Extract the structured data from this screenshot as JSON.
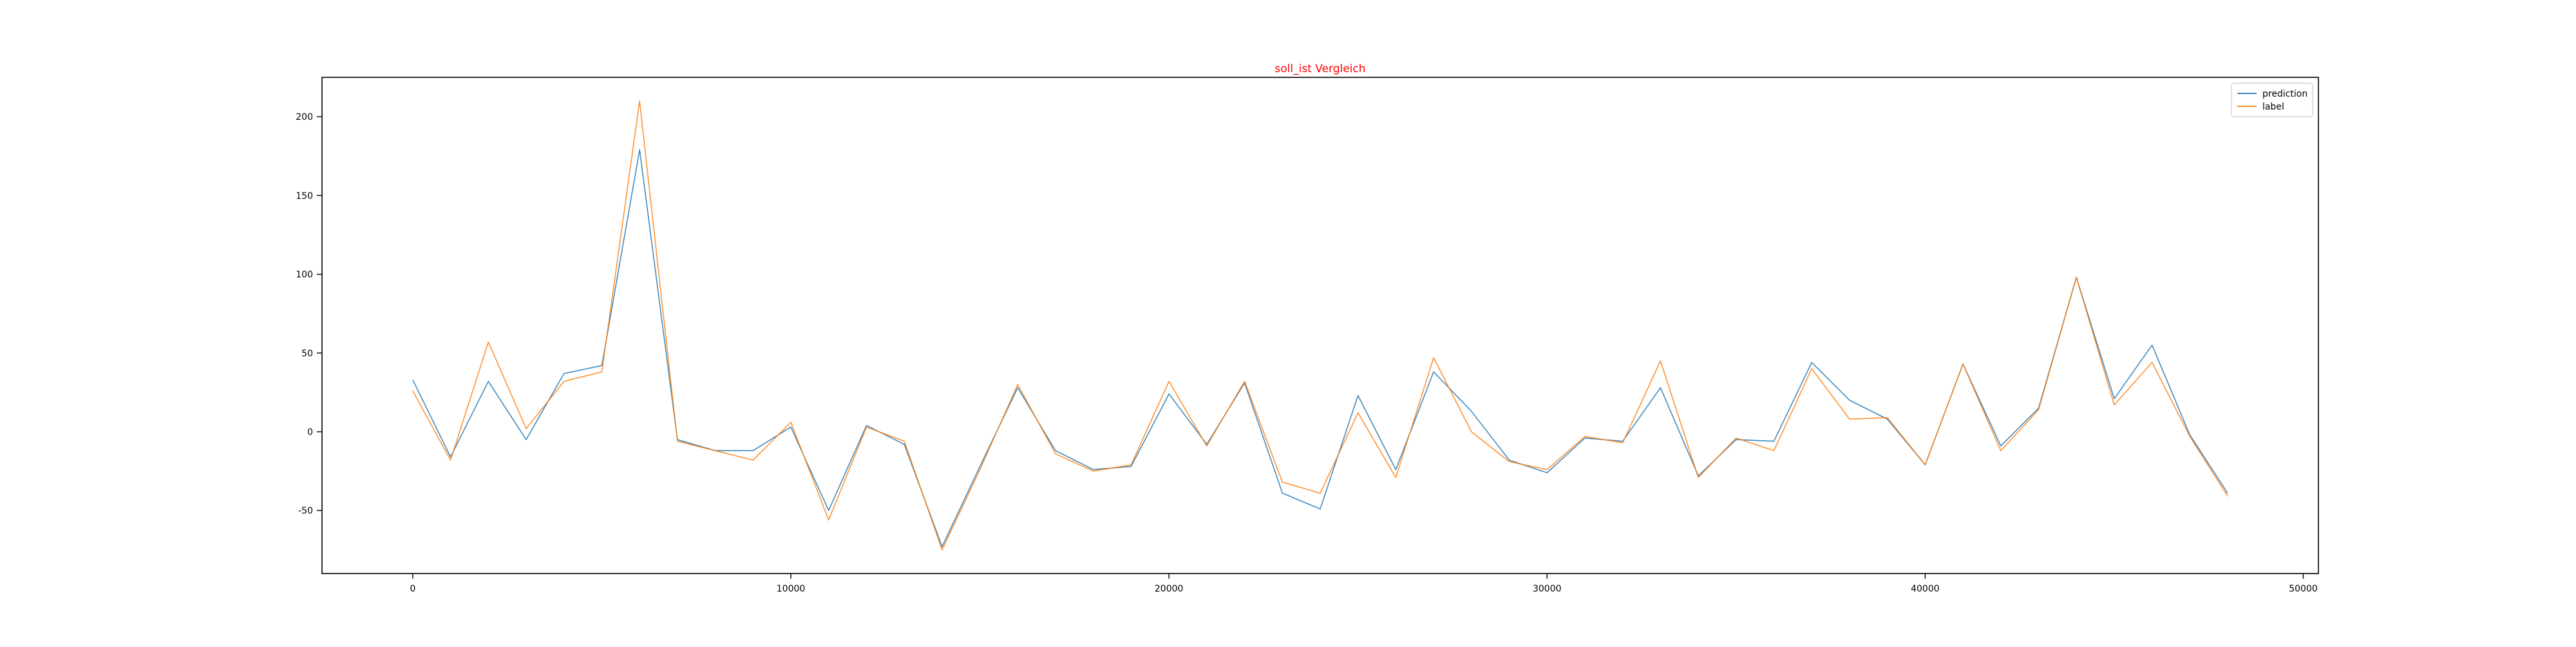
{
  "chart_data": {
    "type": "line",
    "title": "soll_ist Vergleich",
    "title_color": "#ff0000",
    "xlabel": "",
    "ylabel": "",
    "xlim": [
      -2400,
      50400
    ],
    "ylim": [
      -90,
      225
    ],
    "xticks": [
      0,
      10000,
      20000,
      30000,
      40000,
      50000
    ],
    "yticks": [
      -50,
      0,
      50,
      100,
      150,
      200
    ],
    "grid": false,
    "legend_position": "top-right",
    "x": [
      0,
      1000,
      2000,
      3000,
      4000,
      5000,
      6000,
      7000,
      8000,
      9000,
      10000,
      11000,
      12000,
      13000,
      14000,
      15000,
      16000,
      17000,
      18000,
      19000,
      20000,
      21000,
      22000,
      23000,
      24000,
      25000,
      26000,
      27000,
      28000,
      29000,
      30000,
      31000,
      32000,
      33000,
      34000,
      35000,
      36000,
      37000,
      38000,
      39000,
      40000,
      41000,
      42000,
      43000,
      44000,
      45000,
      46000,
      47000,
      48000
    ],
    "series": [
      {
        "name": "prediction",
        "color": "#1f77b4",
        "values": [
          33,
          -16,
          32,
          -5,
          37,
          42,
          179,
          -5,
          -12,
          -12,
          3,
          -50,
          4,
          -8,
          -73,
          -22,
          28,
          -12,
          -24,
          -22,
          24,
          -8,
          31,
          -39,
          -49,
          23,
          -24,
          38,
          13,
          -18,
          -26,
          -4,
          -6,
          28,
          -28,
          -5,
          -6,
          44,
          20,
          8,
          -21,
          43,
          -9,
          15,
          98,
          21,
          55,
          -2,
          -39
        ]
      },
      {
        "name": "label",
        "color": "#ff7f0e",
        "values": [
          26,
          -18,
          57,
          2,
          32,
          38,
          210,
          -6,
          -12,
          -18,
          6,
          -56,
          3,
          -6,
          -75,
          -24,
          30,
          -14,
          -25,
          -21,
          32,
          -9,
          32,
          -32,
          -39,
          12,
          -29,
          47,
          0,
          -19,
          -24,
          -3,
          -7,
          45,
          -29,
          -4,
          -12,
          40,
          8,
          9,
          -21,
          43,
          -12,
          14,
          98,
          17,
          44,
          -3,
          -41
        ]
      }
    ]
  }
}
